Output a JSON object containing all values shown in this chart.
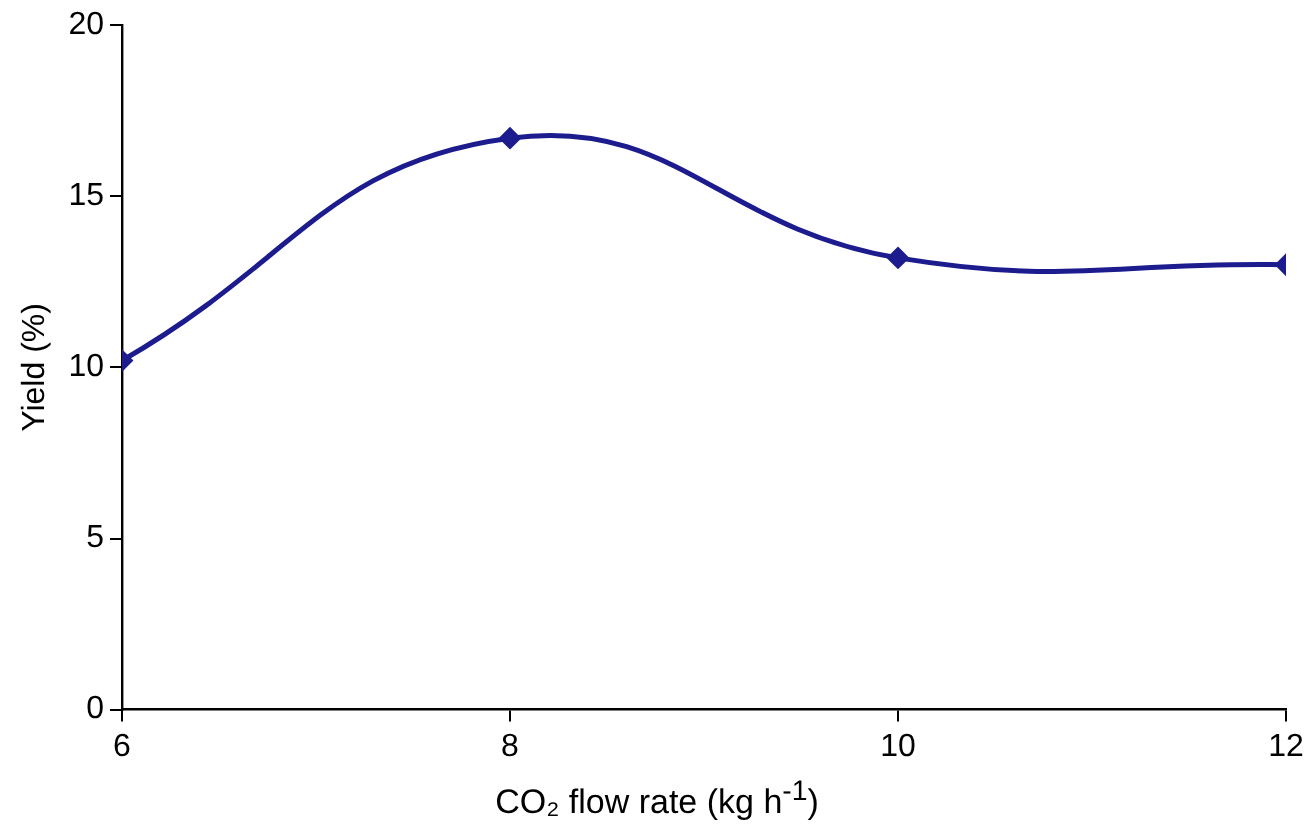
{
  "chart_data": {
    "type": "line",
    "xlabel": "CO₂ flow rate (kg h$^{-1}$)",
    "ylabel": "Yield (%)",
    "x": [
      6,
      8,
      10,
      12
    ],
    "series": [
      {
        "color": "#1c1c8f",
        "values": [
          10.2,
          16.7,
          13.2,
          13.0
        ]
      }
    ],
    "xlim": [
      6,
      12
    ],
    "xticks": [
      6,
      8,
      10,
      12
    ],
    "ylim": [
      0,
      20
    ],
    "yticks": [
      0,
      5,
      10,
      15,
      20
    ],
    "grid": false,
    "legend": false,
    "marker": "diamond",
    "line_style": "solid"
  }
}
